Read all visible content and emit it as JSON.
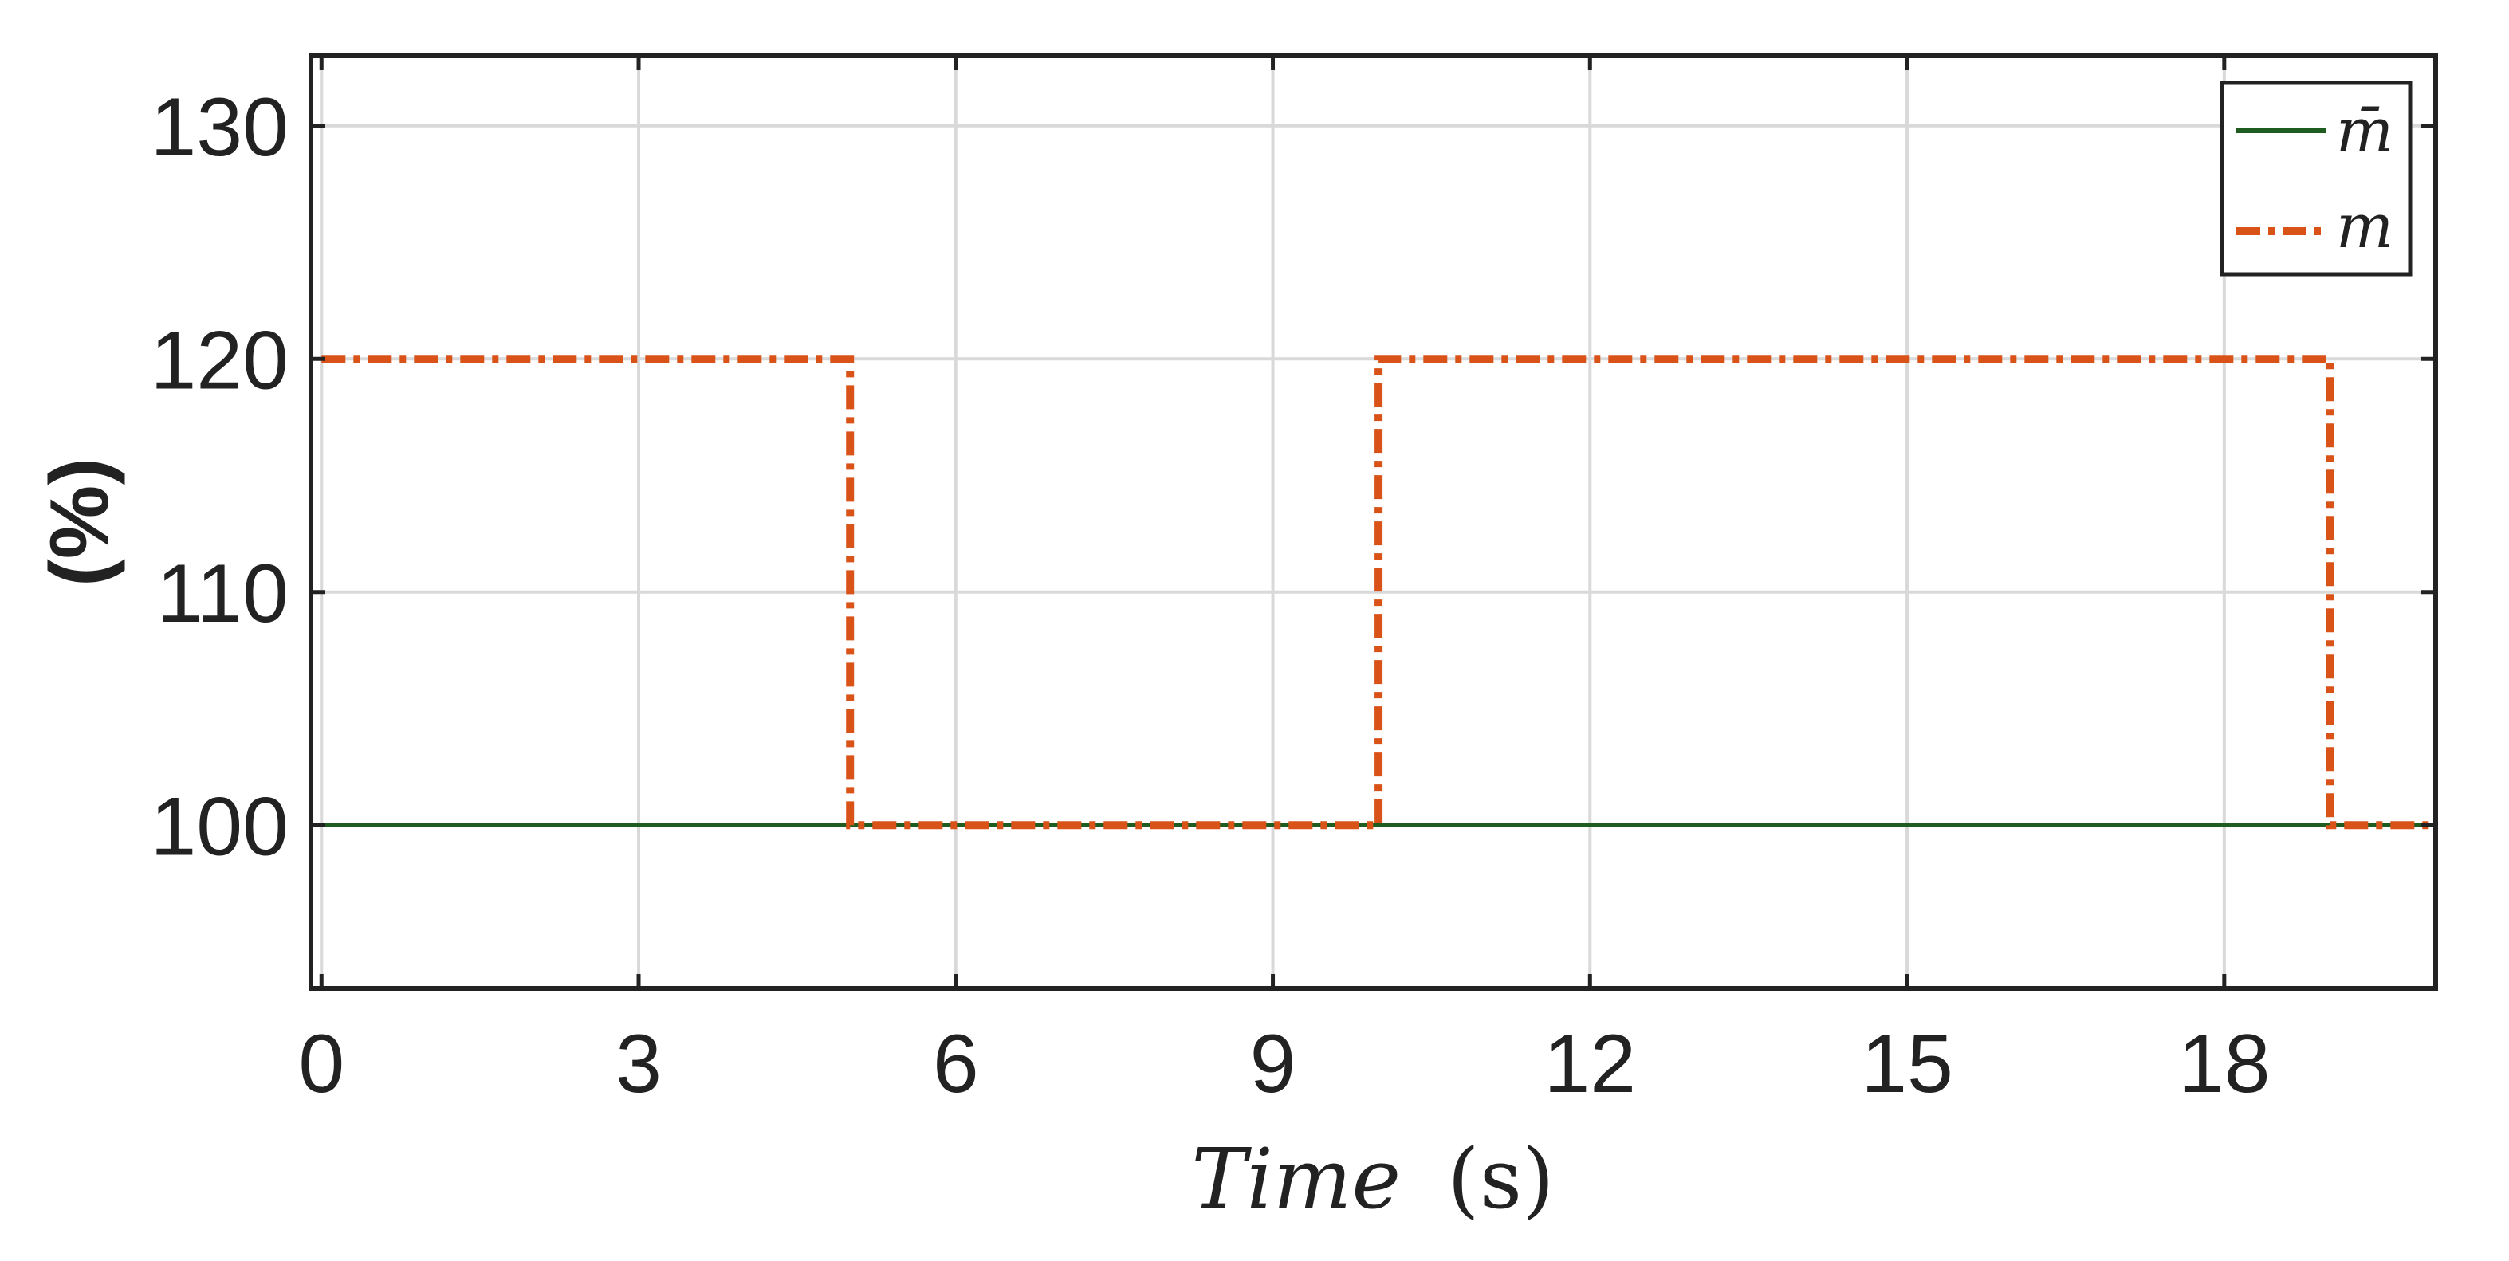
{
  "chart_data": {
    "type": "line",
    "title": "",
    "xlabel": "Time (s)",
    "xlabel_italic_part": "Time",
    "xlabel_unit_part": "(s)",
    "ylabel": "(%)",
    "xlim": [
      -0.1,
      20
    ],
    "ylim": [
      93,
      133
    ],
    "xticks": [
      0,
      3,
      6,
      9,
      12,
      15,
      18
    ],
    "xtick_labels": [
      "0",
      "3",
      "6",
      "9",
      "12",
      "15",
      "18"
    ],
    "yticks": [
      100,
      110,
      120,
      130
    ],
    "ytick_labels": [
      "100",
      "110",
      "120",
      "130"
    ],
    "grid": true,
    "legend_position": "top-right",
    "series": [
      {
        "name": "m̄",
        "color": "#1f5c1f",
        "style": "solid",
        "x": [
          0,
          20
        ],
        "y": [
          100,
          100
        ]
      },
      {
        "name": "m",
        "color": "#d95319",
        "style": "dash-dot",
        "x": [
          0,
          5,
          5,
          10,
          10,
          19,
          19,
          20
        ],
        "y": [
          120,
          120,
          100,
          100,
          120,
          120,
          100,
          100
        ]
      }
    ]
  }
}
